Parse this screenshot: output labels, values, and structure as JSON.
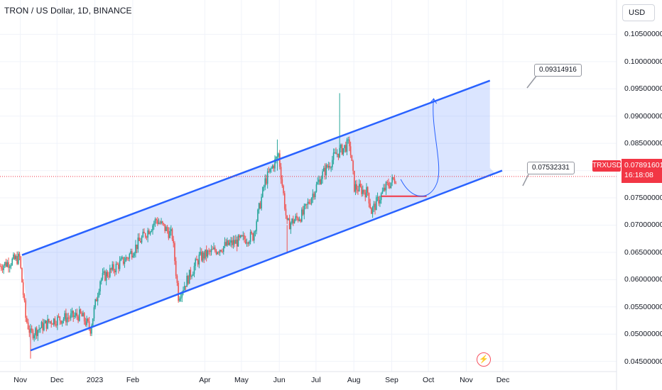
{
  "header": {
    "title": "TRON / US Dollar, 1D, BINANCE",
    "currency_button": "USD"
  },
  "price_scale": {
    "ticks": [
      "0.10500000",
      "0.10000000",
      "0.09500000",
      "0.09000000",
      "0.08500000",
      "0.08000000",
      "0.07500000",
      "0.07000000",
      "0.06500000",
      "0.06000000",
      "0.05500000",
      "0.05000000",
      "0.04500000"
    ]
  },
  "time_scale": {
    "ticks": [
      "Nov",
      "Dec",
      "2023",
      "Feb",
      "Apr",
      "May",
      "Jun",
      "Jul",
      "Aug",
      "Sep",
      "Oct",
      "Nov",
      "Dec"
    ]
  },
  "current": {
    "symbol_badge": "TRXUSD",
    "price": "0.07891601",
    "countdown": "16:18:08",
    "color": "#f23645"
  },
  "annotations": {
    "upper_target": "0.09314916",
    "lower_target": "0.07532331"
  },
  "colors": {
    "up": "#26a69a",
    "down": "#ef5350",
    "channel": "#2962ff",
    "channel_fill": "#dbe4ff",
    "support_line": "#f23645"
  },
  "chart_data": {
    "type": "candlestick",
    "title": "TRON / US Dollar, 1D, BINANCE",
    "price_range": [
      0.043,
      0.107
    ],
    "time_range": [
      "2022-10-20",
      "2023-12-10"
    ],
    "channel": {
      "upper": [
        {
          "date": "2022-11-07",
          "price": 0.0645
        },
        {
          "date": "2023-11-25",
          "price": 0.0965
        }
      ],
      "lower": [
        {
          "date": "2022-11-14",
          "price": 0.047
        },
        {
          "date": "2023-12-05",
          "price": 0.08
        }
      ]
    },
    "support_level": 0.0753,
    "targets": [
      0.09314916,
      0.07532331
    ],
    "last_price": 0.07891601,
    "key_points": [
      {
        "date": "2022-10-20",
        "close": 0.0625
      },
      {
        "date": "2022-11-05",
        "close": 0.064
      },
      {
        "date": "2022-11-10",
        "close": 0.053
      },
      {
        "date": "2022-11-14",
        "close": 0.05
      },
      {
        "date": "2022-12-01",
        "close": 0.0525
      },
      {
        "date": "2022-12-25",
        "close": 0.0535
      },
      {
        "date": "2023-01-02",
        "close": 0.051
      },
      {
        "date": "2023-01-10",
        "close": 0.06
      },
      {
        "date": "2023-02-01",
        "close": 0.064
      },
      {
        "date": "2023-02-25",
        "close": 0.071
      },
      {
        "date": "2023-03-10",
        "close": 0.068
      },
      {
        "date": "2023-03-15",
        "close": 0.057
      },
      {
        "date": "2023-04-01",
        "close": 0.064
      },
      {
        "date": "2023-04-20",
        "close": 0.066
      },
      {
        "date": "2023-05-15",
        "close": 0.068
      },
      {
        "date": "2023-05-25",
        "close": 0.078
      },
      {
        "date": "2023-06-05",
        "close": 0.083
      },
      {
        "date": "2023-06-12",
        "close": 0.07
      },
      {
        "date": "2023-06-25",
        "close": 0.072
      },
      {
        "date": "2023-07-10",
        "close": 0.079
      },
      {
        "date": "2023-07-22",
        "close": 0.083
      },
      {
        "date": "2023-08-02",
        "close": 0.085
      },
      {
        "date": "2023-08-06",
        "close": 0.077
      },
      {
        "date": "2023-08-17",
        "close": 0.076
      },
      {
        "date": "2023-08-20",
        "close": 0.0725
      },
      {
        "date": "2023-09-01",
        "close": 0.077
      },
      {
        "date": "2023-09-10",
        "close": 0.0789
      }
    ]
  }
}
